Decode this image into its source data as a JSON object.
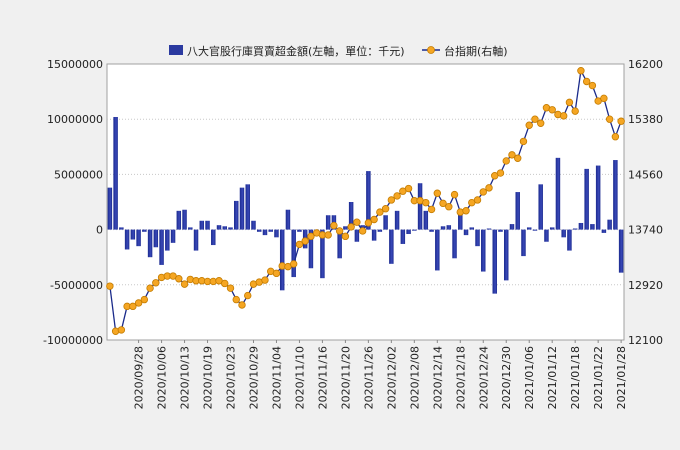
{
  "chart_data": {
    "type": "bar+line",
    "legend": {
      "placement": "top-center",
      "items": [
        {
          "label": "八大官股行庫買賣超金額(左軸，單位：千元)",
          "kind": "bar",
          "color": "#2b3aa0"
        },
        {
          "label": "台指期(右軸)",
          "kind": "line-marker",
          "color": "#f5a623"
        }
      ]
    },
    "left_axis": {
      "min": -10000000,
      "max": 15000000,
      "ticks": [
        "15000000",
        "10000000",
        "5000000",
        "0",
        "-5000000",
        "-10000000"
      ]
    },
    "right_axis": {
      "min": 12100,
      "max": 16200,
      "ticks": [
        "16200",
        "15380",
        "14560",
        "13740",
        "12920",
        "12100"
      ]
    },
    "x_tick_labels": [
      "2020/09/28",
      "2020/10/06",
      "2020/10/13",
      "2020/10/19",
      "2020/10/23",
      "2020/10/29",
      "2020/11/04",
      "2020/11/10",
      "2020/11/16",
      "2020/11/20",
      "2020/11/26",
      "2020/12/02",
      "2020/12/08",
      "2020/12/14",
      "2020/12/18",
      "2020/12/24",
      "2020/12/30",
      "2021/01/06",
      "2021/01/12",
      "2021/01/18",
      "2021/01/22",
      "2021/01/28"
    ],
    "grid": "horizontal dotted",
    "bars": [
      3800000,
      10200000,
      200000,
      -1800000,
      -900000,
      -1500000,
      -200000,
      -2500000,
      -1600000,
      -3200000,
      -1900000,
      -1200000,
      1700000,
      1800000,
      200000,
      -1900000,
      800000,
      800000,
      -1400000,
      400000,
      300000,
      200000,
      2600000,
      3800000,
      4100000,
      800000,
      -200000,
      -500000,
      -200000,
      -700000,
      -5500000,
      1800000,
      -4300000,
      -200000,
      -1700000,
      -3500000,
      -300000,
      -4400000,
      1300000,
      1300000,
      -2600000,
      300000,
      2500000,
      -1100000,
      400000,
      5300000,
      -1000000,
      -200000,
      1300000,
      -3100000,
      1700000,
      -1300000,
      -400000,
      -100000,
      4200000,
      1700000,
      -200000,
      -3700000,
      300000,
      400000,
      -2600000,
      1500000,
      -500000,
      200000,
      -1500000,
      -3800000,
      100000,
      -5800000,
      -200000,
      -4600000,
      500000,
      3400000,
      -2400000,
      200000,
      -100000,
      4100000,
      -1100000,
      200000,
      6500000,
      -700000,
      -1900000,
      100000,
      600000,
      5500000,
      500000,
      5800000,
      -300000,
      900000,
      6300000,
      -3900000
    ],
    "line": [
      12900,
      12230,
      12250,
      12600,
      12600,
      12650,
      12700,
      12870,
      12950,
      13030,
      13050,
      13050,
      13010,
      12930,
      13000,
      12980,
      12980,
      12970,
      12970,
      12980,
      12940,
      12870,
      12700,
      12620,
      12760,
      12930,
      12960,
      12990,
      13120,
      13090,
      13200,
      13190,
      13230,
      13520,
      13570,
      13640,
      13690,
      13660,
      13660,
      13800,
      13720,
      13640,
      13780,
      13850,
      13720,
      13840,
      13890,
      14000,
      14050,
      14180,
      14240,
      14310,
      14350,
      14170,
      14170,
      14140,
      14040,
      14280,
      14130,
      14080,
      14260,
      14000,
      14020,
      14140,
      14180,
      14300,
      14360,
      14540,
      14580,
      14760,
      14850,
      14800,
      15050,
      15290,
      15380,
      15320,
      15550,
      15520,
      15450,
      15430,
      15630,
      15500,
      16100,
      15940,
      15880,
      15650,
      15690,
      15380,
      15120,
      15350
    ]
  }
}
